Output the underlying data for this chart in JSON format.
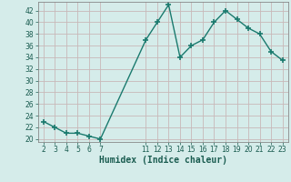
{
  "x": [
    2,
    3,
    4,
    5,
    6,
    7,
    11,
    12,
    13,
    14,
    15,
    16,
    17,
    18,
    19,
    20,
    21,
    22,
    23
  ],
  "y": [
    23,
    22,
    21,
    21,
    20.5,
    20,
    37,
    40,
    43,
    34,
    36,
    37,
    40,
    42,
    40.5,
    39,
    38,
    35,
    33.5
  ],
  "line_color": "#1a7a6e",
  "marker": "+",
  "marker_size": 4,
  "marker_linewidth": 1.2,
  "bg_color": "#d5ecea",
  "grid_color": "#c8b8b8",
  "xlabel": "Humidex (Indice chaleur)",
  "ylabel": "",
  "xlim": [
    1.5,
    23.5
  ],
  "ylim": [
    19.5,
    43.5
  ],
  "yticks": [
    20,
    22,
    24,
    26,
    28,
    30,
    32,
    34,
    36,
    38,
    40,
    42
  ],
  "xticks": [
    2,
    3,
    4,
    5,
    6,
    7,
    11,
    12,
    13,
    14,
    15,
    16,
    17,
    18,
    19,
    20,
    21,
    22,
    23
  ],
  "tick_fontsize": 5.5,
  "xlabel_fontsize": 7.0,
  "tick_color": "#1a5c50",
  "axis_color": "#888888",
  "line_width": 1.0
}
